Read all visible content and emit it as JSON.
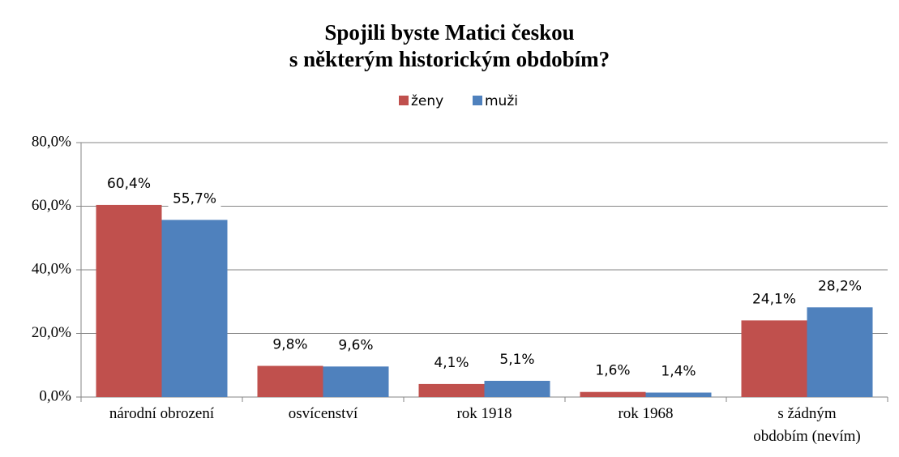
{
  "chart_data": {
    "type": "bar",
    "title": "Spojili byste Matici českou\ns některým historickým obdobím?",
    "categories": [
      "národní obrození",
      "osvícenství",
      "rok 1918",
      "rok 1968",
      "s žádným\nobdobím (nevím)"
    ],
    "series": [
      {
        "name": "ženy",
        "color": "#c0504d",
        "values": [
          60.4,
          9.8,
          4.1,
          1.6,
          24.1
        ],
        "value_labels": [
          "60,4%",
          "9,8%",
          "4,1%",
          "1,6%",
          "24,1%"
        ]
      },
      {
        "name": "muži",
        "color": "#4f81bd",
        "values": [
          55.7,
          9.6,
          5.1,
          1.4,
          28.2
        ],
        "value_labels": [
          "55,7%",
          "9,6%",
          "5,1%",
          "1,4%",
          "28,2%"
        ]
      }
    ],
    "ylim": [
      0,
      80
    ],
    "yticks": [
      {
        "value": 0,
        "label": "0,0%"
      },
      {
        "value": 20,
        "label": "20,0%"
      },
      {
        "value": 40,
        "label": "40,0%"
      },
      {
        "value": 60,
        "label": "60,0%"
      },
      {
        "value": 80,
        "label": "80,0%"
      }
    ],
    "grid": true,
    "legend": "top"
  }
}
